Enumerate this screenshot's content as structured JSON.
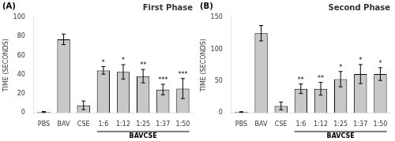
{
  "chart_data": [
    {
      "type": "bar",
      "title": "First Phase",
      "ylabel": "TIME (SECONDS)",
      "categories": [
        "PBS",
        "BAV",
        "CSE",
        "1:6",
        "1:12",
        "1:25",
        "1:37",
        "1:50"
      ],
      "values": [
        1.0,
        77.0,
        8.0,
        44.5,
        43.0,
        38.5,
        24.5,
        25.5
      ],
      "errors": [
        0.5,
        5.5,
        4.5,
        4.0,
        7.5,
        7.0,
        5.5,
        10.5
      ],
      "significance": [
        null,
        null,
        null,
        "*",
        "*",
        "**",
        "***",
        "***"
      ],
      "color": "#c8c8c8",
      "ylim": [
        0,
        100
      ],
      "yticks": [
        0,
        20,
        40,
        60,
        80,
        100
      ],
      "grid": false,
      "annotations": [
        {
          "text": "(A)"
        },
        {
          "text": "BAVCSE",
          "categories": [
            "1:6",
            "1:50"
          ]
        }
      ]
    },
    {
      "type": "bar",
      "title": "Second Phase",
      "ylabel": "TIME (SECONDS)",
      "categories": [
        "PBS",
        "BAV",
        "CSE",
        "1:6",
        "1:12",
        "1:25",
        "1:37",
        "1:50"
      ],
      "values": [
        1.5,
        125.0,
        11.0,
        38.0,
        38.0,
        53.0,
        61.0,
        61.0
      ],
      "errors": [
        0.5,
        12.0,
        6.0,
        7.5,
        10.0,
        12.0,
        15.0,
        10.0
      ],
      "significance": [
        null,
        null,
        null,
        "**",
        "**",
        "*",
        "*",
        "*"
      ],
      "color": "#c8c8c8",
      "ylim": [
        0,
        150
      ],
      "yticks": [
        0,
        50,
        100,
        150
      ],
      "grid": false,
      "annotations": [
        {
          "text": "(B)"
        },
        {
          "text": "BAVCSE",
          "categories": [
            "1:6",
            "1:50"
          ]
        }
      ]
    }
  ]
}
